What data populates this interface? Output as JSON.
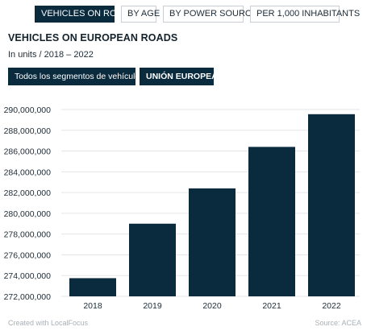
{
  "tabs": [
    {
      "label": "VEHICLES ON ROADS",
      "active": true
    },
    {
      "label": "BY AGE",
      "active": false
    },
    {
      "label": "BY POWER SOURCE",
      "active": false
    },
    {
      "label": "PER 1,000 INHABITANTS",
      "active": false
    }
  ],
  "header": {
    "title": "VEHICLES ON EUROPEAN ROADS",
    "subtitle": "In units / 2018 – 2022"
  },
  "filters": {
    "segment": "Todos los segmentos de vehículos",
    "region": "UNIÓN EUROPEA"
  },
  "colors": {
    "bar": "#0a2a3d",
    "accent": "#0a2a3d",
    "grid": "#e3e6e9"
  },
  "chart_data": {
    "type": "bar",
    "categories": [
      "2018",
      "2019",
      "2020",
      "2021",
      "2022"
    ],
    "values": [
      273750000,
      279000000,
      282400000,
      286400000,
      289550000
    ],
    "title": "",
    "xlabel": "",
    "ylabel": "",
    "ylim": [
      272000000,
      290000000
    ],
    "yticks": [
      272000000,
      274000000,
      276000000,
      278000000,
      280000000,
      282000000,
      284000000,
      286000000,
      288000000,
      290000000
    ],
    "ytick_labels": [
      "272,000,000",
      "274,000,000",
      "276,000,000",
      "278,000,000",
      "280,000,000",
      "282,000,000",
      "284,000,000",
      "286,000,000",
      "288,000,000",
      "290,000,000"
    ],
    "grid": true
  },
  "footer": {
    "credit": "Created with LocalFocus",
    "source": "Source:  ACEA"
  }
}
